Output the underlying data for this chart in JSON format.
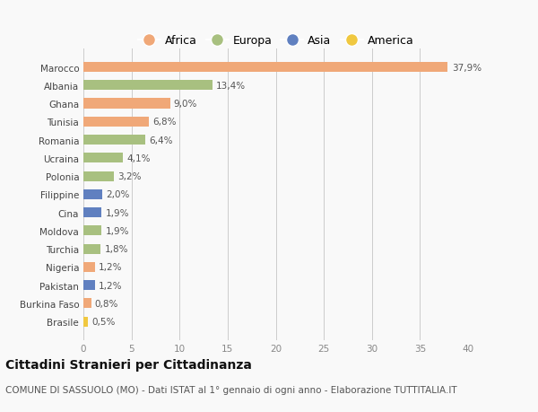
{
  "countries": [
    "Marocco",
    "Albania",
    "Ghana",
    "Tunisia",
    "Romania",
    "Ucraina",
    "Polonia",
    "Filippine",
    "Cina",
    "Moldova",
    "Turchia",
    "Nigeria",
    "Pakistan",
    "Burkina Faso",
    "Brasile"
  ],
  "values": [
    37.9,
    13.4,
    9.0,
    6.8,
    6.4,
    4.1,
    3.2,
    2.0,
    1.9,
    1.9,
    1.8,
    1.2,
    1.2,
    0.8,
    0.5
  ],
  "labels": [
    "37,9%",
    "13,4%",
    "9,0%",
    "6,8%",
    "6,4%",
    "4,1%",
    "3,2%",
    "2,0%",
    "1,9%",
    "1,9%",
    "1,8%",
    "1,2%",
    "1,2%",
    "0,8%",
    "0,5%"
  ],
  "continents": [
    "Africa",
    "Europa",
    "Africa",
    "Africa",
    "Europa",
    "Europa",
    "Europa",
    "Asia",
    "Asia",
    "Europa",
    "Europa",
    "Africa",
    "Asia",
    "Africa",
    "America"
  ],
  "continent_colors": {
    "Africa": "#F0A878",
    "Europa": "#A8C080",
    "Asia": "#6080C0",
    "America": "#F0C840"
  },
  "legend_order": [
    "Africa",
    "Europa",
    "Asia",
    "America"
  ],
  "title": "Cittadini Stranieri per Cittadinanza",
  "subtitle": "COMUNE DI SASSUOLO (MO) - Dati ISTAT al 1° gennaio di ogni anno - Elaborazione TUTTITALIA.IT",
  "xlim": [
    0,
    40
  ],
  "xticks": [
    0,
    5,
    10,
    15,
    20,
    25,
    30,
    35,
    40
  ],
  "background_color": "#f9f9f9",
  "bar_height": 0.55,
  "label_fontsize": 7.5,
  "title_fontsize": 10,
  "subtitle_fontsize": 7.5,
  "tick_fontsize": 7.5,
  "legend_fontsize": 9
}
